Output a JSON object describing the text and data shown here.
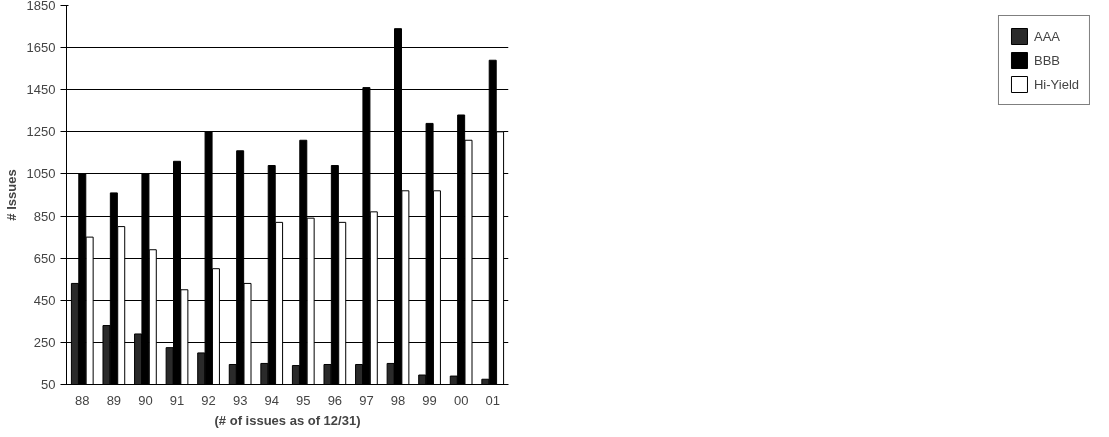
{
  "chart_data": {
    "type": "bar",
    "xlabel": "(# of issues as of 12/31)",
    "ylabel": "# Issues",
    "categories": [
      "88",
      "89",
      "90",
      "91",
      "92",
      "93",
      "94",
      "95",
      "96",
      "97",
      "98",
      "99",
      "00",
      "01"
    ],
    "series": [
      {
        "name": "AAA",
        "color": "#2a2a2a",
        "values": [
          530,
          330,
          290,
          225,
          200,
          145,
          150,
          140,
          145,
          145,
          150,
          95,
          90,
          75
        ]
      },
      {
        "name": "BBB",
        "color": "#000000",
        "values": [
          1050,
          960,
          1050,
          1110,
          1250,
          1160,
          1090,
          1210,
          1090,
          1460,
          1740,
          1290,
          1330,
          1590
        ]
      },
      {
        "name": "Hi-Yield",
        "color": "#ffffff",
        "values": [
          750,
          800,
          690,
          500,
          600,
          530,
          820,
          840,
          820,
          870,
          970,
          970,
          1210,
          1250
        ]
      }
    ],
    "ylim": [
      50,
      1850
    ],
    "yticks": [
      50,
      250,
      450,
      650,
      850,
      1050,
      1250,
      1450,
      1650,
      1850
    ],
    "grid": "y",
    "legend": "right"
  }
}
